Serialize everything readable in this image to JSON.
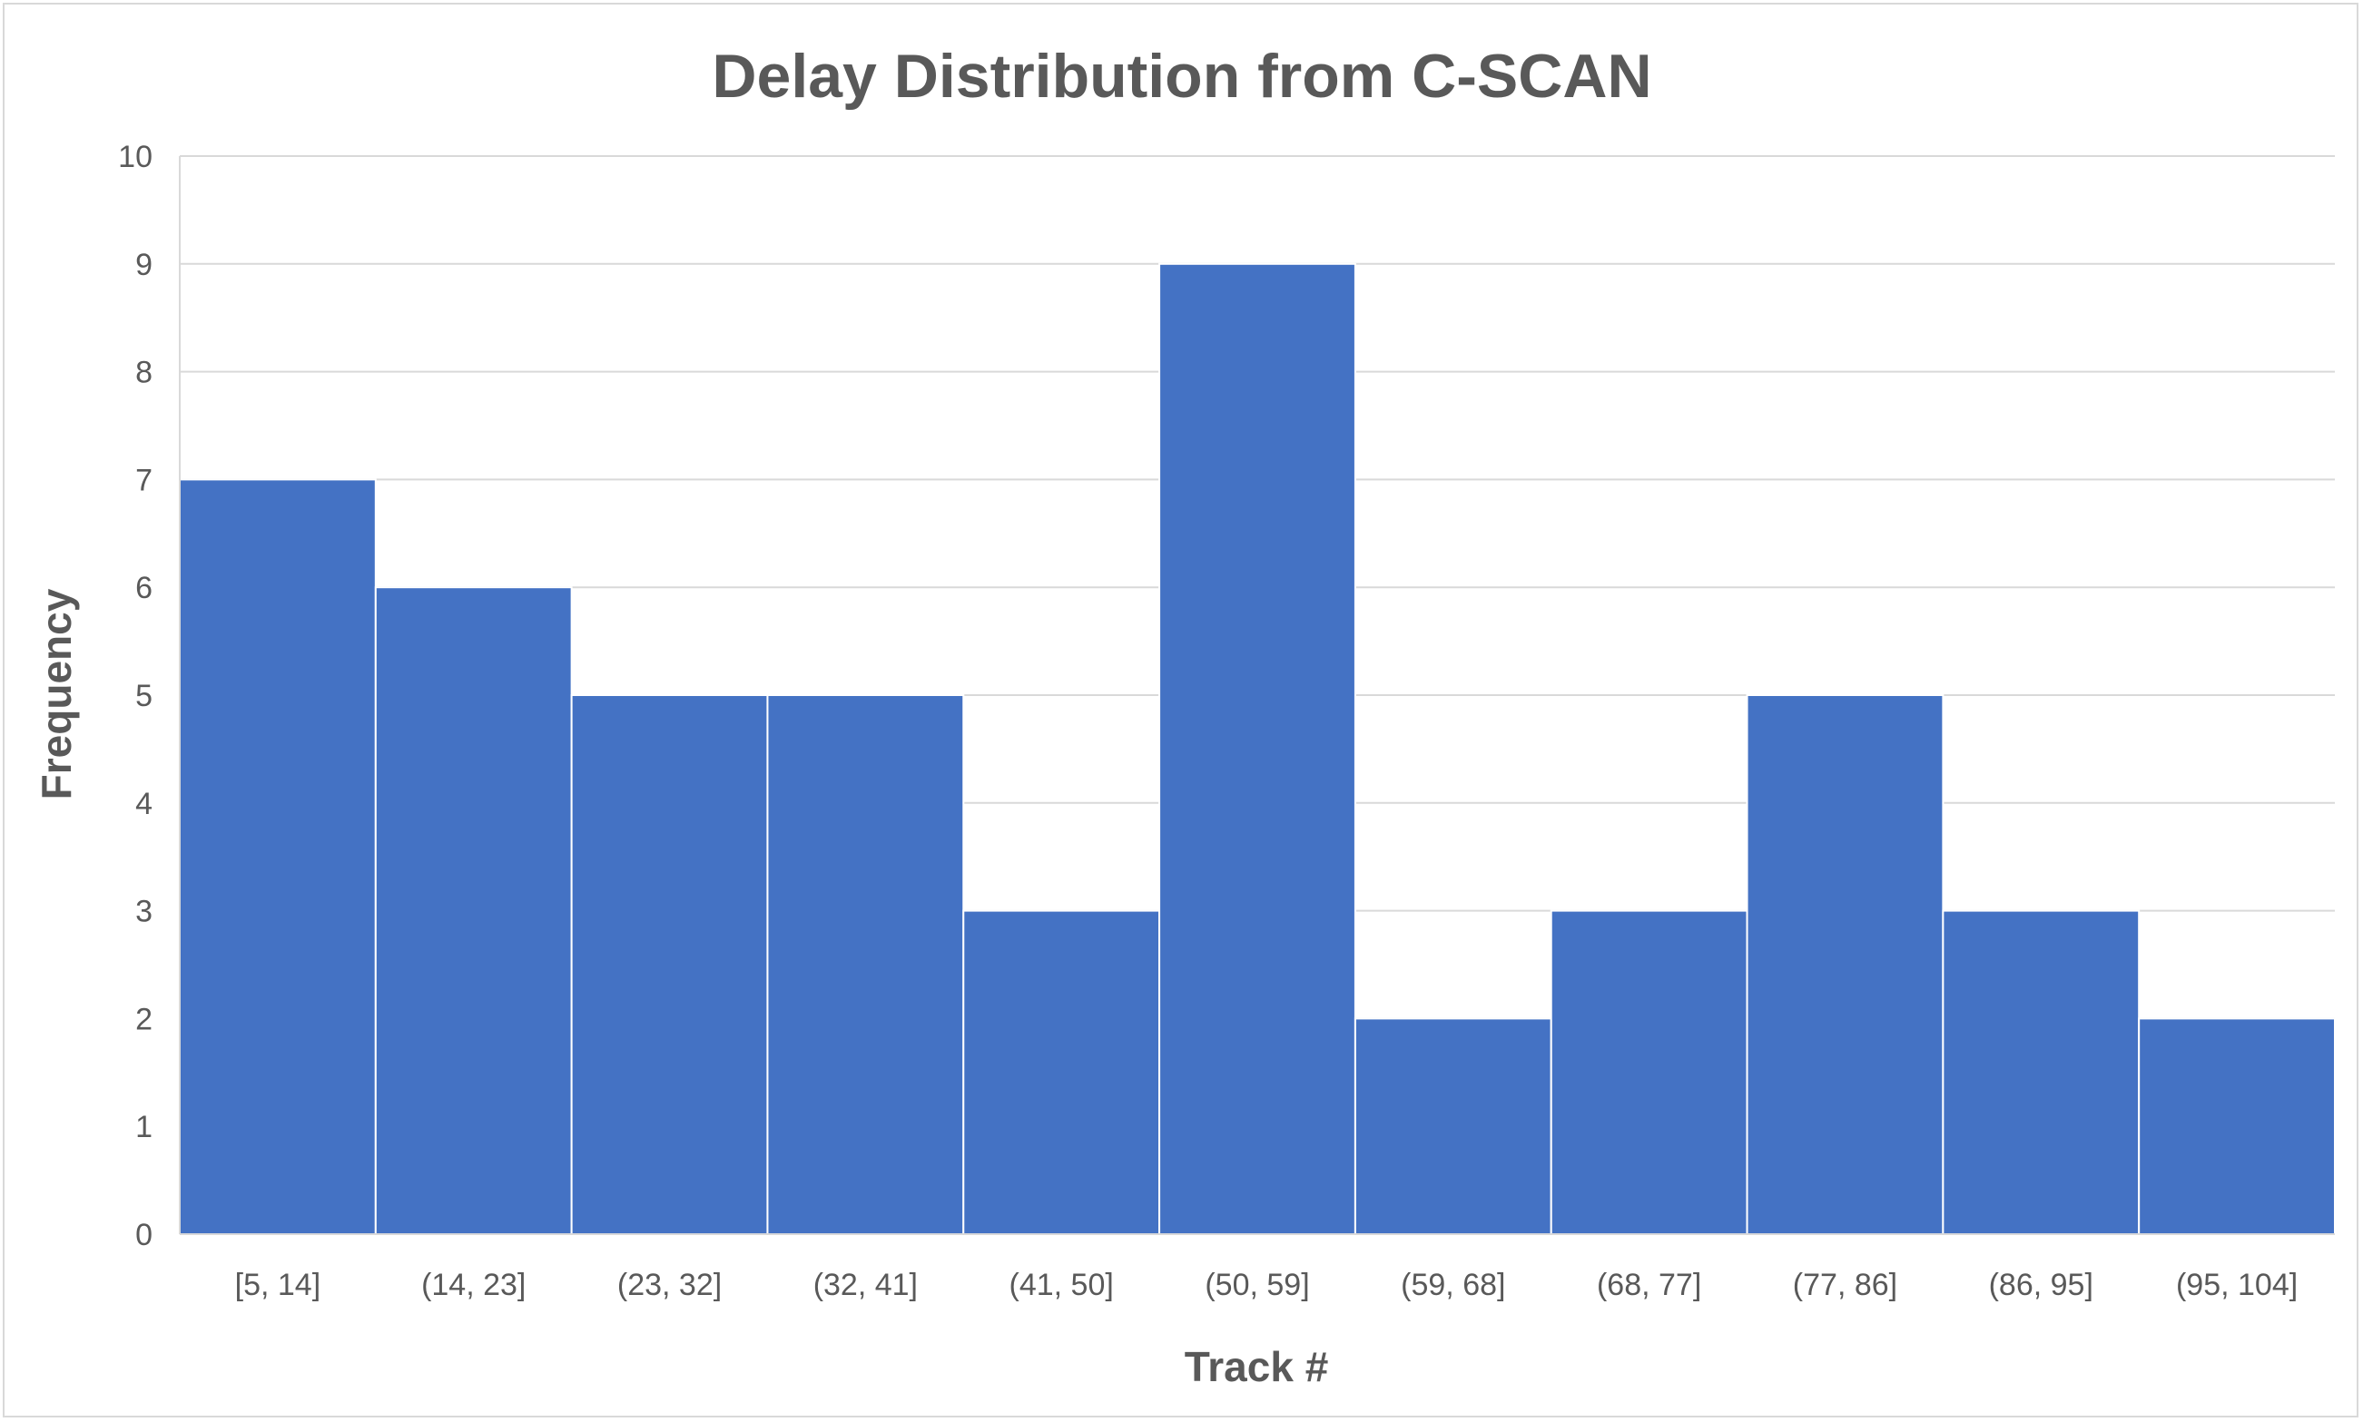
{
  "chart_data": {
    "type": "bar",
    "title": "Delay Distribution from C-SCAN",
    "xlabel": "Track #",
    "ylabel": "Frequency",
    "categories": [
      "[5, 14]",
      "(14, 23]",
      "(23, 32]",
      "(32, 41]",
      "(41, 50]",
      "(50, 59]",
      "(59, 68]",
      "(68, 77]",
      "(77, 86]",
      "(86, 95]",
      "(95, 104]"
    ],
    "values": [
      7,
      6,
      5,
      5,
      3,
      9,
      2,
      3,
      5,
      3,
      2
    ],
    "ylim": [
      0,
      10
    ],
    "yticks": [
      0,
      1,
      2,
      3,
      4,
      5,
      6,
      7,
      8,
      9,
      10
    ],
    "grid": true,
    "legend": "none",
    "bar_color": "#4472c4",
    "gap": "none"
  }
}
